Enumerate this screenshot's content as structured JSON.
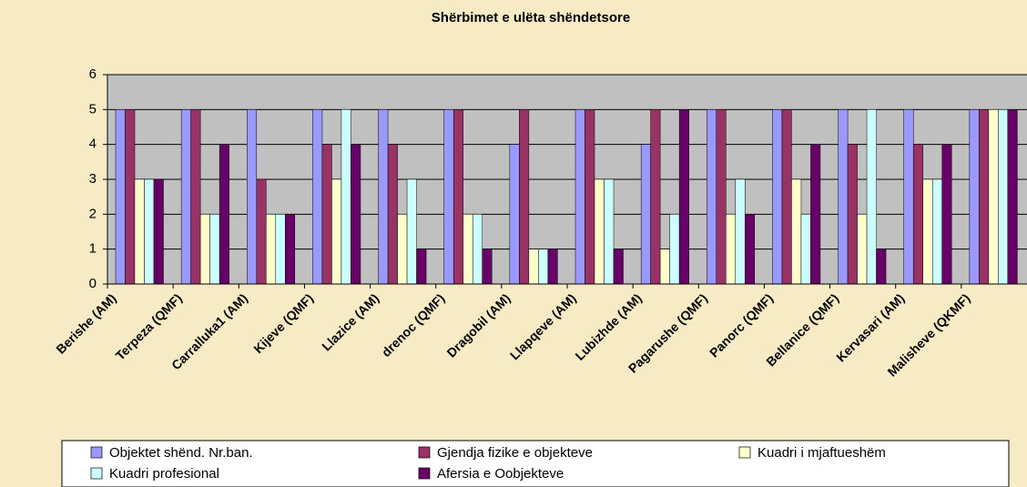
{
  "chart_data": {
    "type": "bar",
    "title": "Shërbimet e ulëta shëndetsore",
    "categories": [
      "Berishe (AM)",
      "Terpeza (QMF)",
      "Carralluka1 (AM)",
      "Kijeve (QMF)",
      "Llazice (AM)",
      "drenoc (QMF)",
      "Dragobil (AM)",
      "Llapqeve (AM)",
      "Lubizhde (AM)",
      "Pagarushe (QMF)",
      "Panorc (QMF)",
      "Bellanice (QMF)",
      "Kervasari (AM)",
      "Malisheve (QKMF)"
    ],
    "series": [
      {
        "name": "Objektet shënd. Nr.ban.",
        "color": "#9999ff",
        "values": [
          5,
          5,
          5,
          5,
          5,
          5,
          4,
          5,
          4,
          5,
          5,
          5,
          5,
          5
        ]
      },
      {
        "name": "Gjendja fizike e objekteve",
        "color": "#993366",
        "values": [
          5,
          5,
          3,
          4,
          4,
          5,
          5,
          5,
          5,
          5,
          5,
          4,
          4,
          5
        ]
      },
      {
        "name": "Kuadri i mjaftueshëm",
        "color": "#ffffcc",
        "values": [
          3,
          2,
          2,
          3,
          2,
          2,
          1,
          3,
          1,
          2,
          3,
          2,
          3,
          5
        ]
      },
      {
        "name": "Kuadri profesional",
        "color": "#ccffff",
        "values": [
          3,
          2,
          2,
          5,
          3,
          2,
          1,
          3,
          2,
          3,
          2,
          5,
          3,
          5
        ]
      },
      {
        "name": "Afersia e Oobjekteve",
        "color": "#660066",
        "values": [
          3,
          4,
          2,
          4,
          1,
          1,
          1,
          1,
          5,
          2,
          4,
          1,
          4,
          5
        ]
      }
    ],
    "ylim": [
      0,
      6
    ],
    "yticks": [
      0,
      1,
      2,
      3,
      4,
      5,
      6
    ],
    "grid": true
  }
}
